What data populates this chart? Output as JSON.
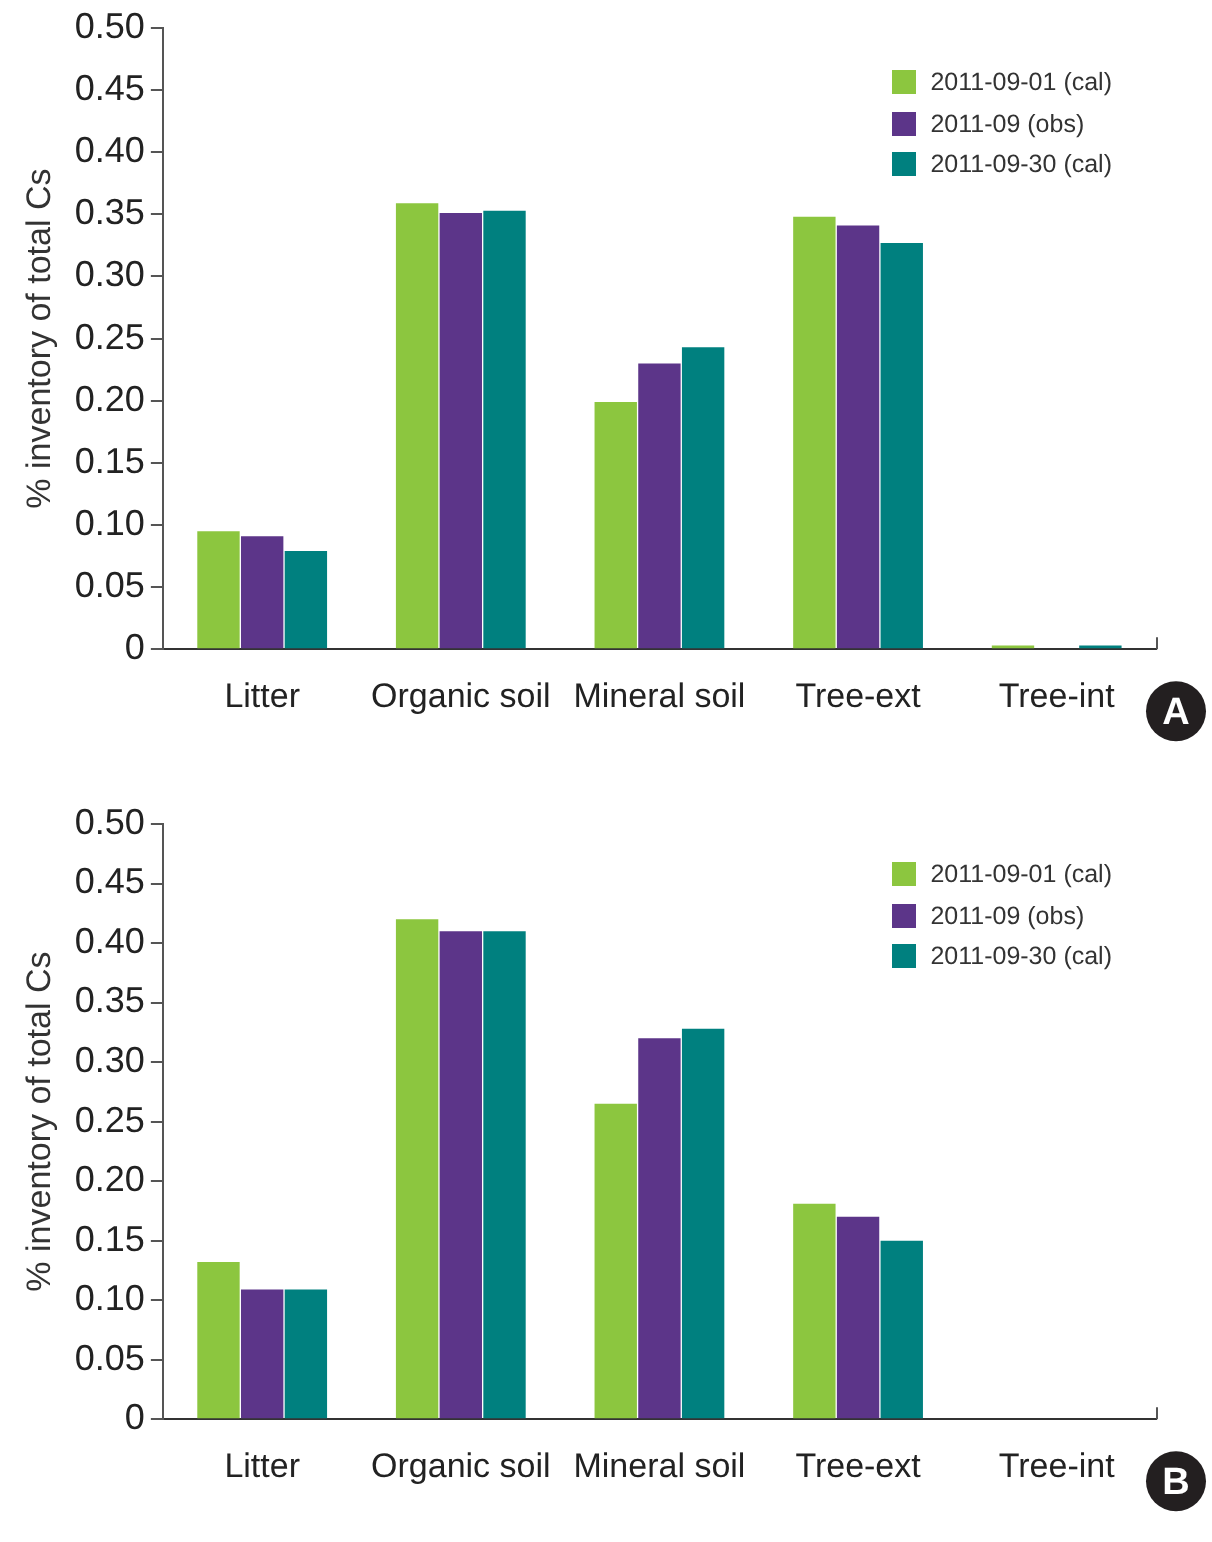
{
  "chart_data": [
    {
      "type": "bar",
      "ylabel": "% inventory of total Cs",
      "categories": [
        "Litter",
        "Organic soil",
        "Mineral soil",
        "Tree-ext",
        "Tree-int"
      ],
      "series": [
        {
          "name": "2011-09-01 (cal)",
          "color": "#8cc63f",
          "values": [
            0.095,
            0.359,
            0.199,
            0.348,
            0.003
          ]
        },
        {
          "name": "2011-09 (obs)",
          "color": "#5c3589",
          "values": [
            0.091,
            0.351,
            0.23,
            0.341,
            0
          ]
        },
        {
          "name": "2011-09-30 (cal)",
          "color": "#00807f",
          "values": [
            0.079,
            0.353,
            0.243,
            0.327,
            0.003
          ]
        }
      ],
      "ylim": [
        0,
        0.5
      ],
      "yticks": [
        0,
        0.05,
        {
          "value": 0.1,
          "label": "0.10"
        },
        0.15,
        {
          "value": 0.2,
          "label": "0.20"
        },
        0.25,
        {
          "value": 0.3,
          "label": "0.30"
        },
        0.35,
        {
          "value": 0.4,
          "label": "0.40"
        },
        0.45,
        {
          "value": 0.5,
          "label": "0.50"
        }
      ],
      "grid": false,
      "legend": "top right",
      "annotations": [
        "A"
      ]
    },
    {
      "type": "bar",
      "ylabel": "% inventory of total Cs",
      "categories": [
        "Litter",
        "Organic soil",
        "Mineral soil",
        "Tree-ext",
        "Tree-int"
      ],
      "series": [
        {
          "name": "2011-09-01 (cal)",
          "color": "#8cc63f",
          "values": [
            0.132,
            0.42,
            0.265,
            0.181,
            null
          ]
        },
        {
          "name": "2011-09 (obs)",
          "color": "#5c3589",
          "values": [
            0.109,
            0.41,
            0.32,
            0.17,
            0
          ]
        },
        {
          "name": "2011-09-30 (cal)",
          "color": "#00807f",
          "values": [
            0.109,
            0.41,
            0.328,
            0.15,
            null
          ]
        }
      ],
      "ylim": [
        0,
        0.5
      ],
      "yticks": [
        0,
        0.05,
        {
          "value": 0.1,
          "label": "0.10"
        },
        0.15,
        {
          "value": 0.2,
          "label": "0.20"
        },
        0.25,
        {
          "value": 0.3,
          "label": "0.30"
        },
        0.35,
        {
          "value": 0.4,
          "label": "0.40"
        },
        0.45,
        {
          "value": 0.5,
          "label": "0.50"
        }
      ],
      "grid": false,
      "legend": "top right",
      "annotations": [
        "B"
      ]
    }
  ]
}
